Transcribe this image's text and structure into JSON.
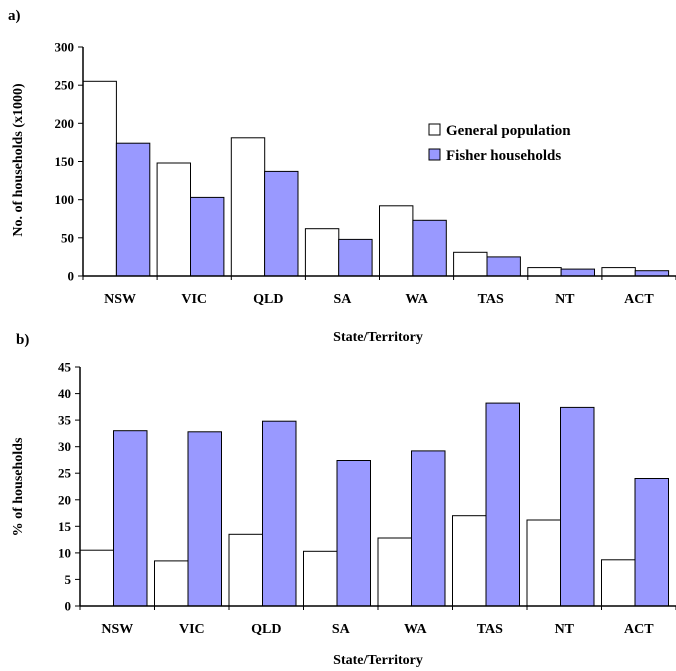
{
  "figure": {
    "colors": {
      "general": "#ffffff",
      "fisher": "#9999ff",
      "stroke": "#000000"
    },
    "legend": [
      {
        "label": "General population"
      },
      {
        "label": "Fisher households"
      }
    ]
  },
  "chart_data": [
    {
      "type": "bar",
      "panel_label": "a)",
      "title": "",
      "categories": [
        "NSW",
        "VIC",
        "QLD",
        "SA",
        "WA",
        "TAS",
        "NT",
        "ACT"
      ],
      "series": [
        {
          "name": "General population",
          "values": [
            255,
            148,
            181,
            62,
            92,
            31,
            11,
            11
          ]
        },
        {
          "name": "Fisher households",
          "values": [
            174,
            103,
            137,
            48,
            73,
            25,
            9,
            7
          ]
        }
      ],
      "xlabel": "State/Territory",
      "ylabel": "No. of households (x1000)",
      "ylim": [
        0,
        300
      ],
      "yticks": [
        0,
        50,
        100,
        150,
        200,
        250,
        300
      ],
      "legend_position": "right",
      "grid": false
    },
    {
      "type": "bar",
      "panel_label": "b)",
      "title": "",
      "categories": [
        "NSW",
        "VIC",
        "QLD",
        "SA",
        "WA",
        "TAS",
        "NT",
        "ACT"
      ],
      "series": [
        {
          "name": "General population",
          "values": [
            10.5,
            8.5,
            13.5,
            10.3,
            12.8,
            17,
            16.2,
            8.7
          ]
        },
        {
          "name": "Fisher households",
          "values": [
            33,
            32.8,
            34.8,
            27.4,
            29.2,
            38.2,
            37.4,
            24
          ]
        }
      ],
      "xlabel": "State/Territory",
      "ylabel": "% of households",
      "ylim": [
        0,
        45
      ],
      "yticks": [
        0,
        5,
        10,
        15,
        20,
        25,
        30,
        35,
        40,
        45
      ],
      "grid": false
    }
  ]
}
